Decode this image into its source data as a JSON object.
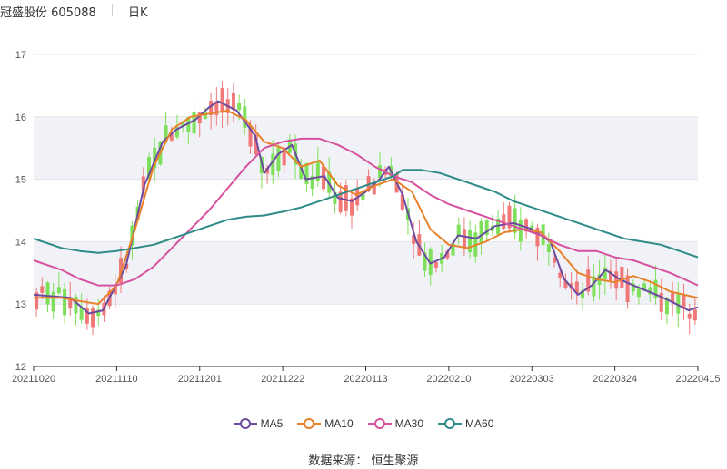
{
  "header": {
    "stock": "冠盛股份 605088",
    "period": "日K"
  },
  "source": "数据来源： 恒生聚源",
  "chart_data": {
    "type": "candlestick",
    "y_ticks": [
      12,
      13,
      14,
      15,
      16,
      17
    ],
    "ylim": [
      12,
      17
    ],
    "x_tick_labels": [
      "20211020",
      "20211110",
      "20211201",
      "20211222",
      "20220113",
      "20220210",
      "20220303",
      "20220324",
      "20220415"
    ],
    "legend": [
      {
        "name": "MA5",
        "color": "#6b4aa0"
      },
      {
        "name": "MA10",
        "color": "#e8822a"
      },
      {
        "name": "MA30",
        "color": "#d6529e"
      },
      {
        "name": "MA60",
        "color": "#2e8b88"
      }
    ],
    "up_color": "#f07878",
    "down_color": "#7ee05a",
    "n_days": 118,
    "candles": [],
    "ma_series": {
      "MA5": [
        [
          0,
          13.15
        ],
        [
          8,
          13.1
        ],
        [
          12,
          12.85
        ],
        [
          15,
          12.9
        ],
        [
          20,
          13.6
        ],
        [
          24,
          14.9
        ],
        [
          28,
          15.6
        ],
        [
          31,
          15.8
        ],
        [
          35,
          15.95
        ],
        [
          38,
          16.15
        ],
        [
          40,
          16.25
        ],
        [
          44,
          16.1
        ],
        [
          48,
          15.7
        ],
        [
          50,
          15.1
        ],
        [
          53,
          15.4
        ],
        [
          56,
          15.55
        ],
        [
          59,
          15.0
        ],
        [
          63,
          15.05
        ],
        [
          66,
          14.7
        ],
        [
          69,
          14.65
        ],
        [
          72,
          14.8
        ],
        [
          75,
          15.0
        ],
        [
          77,
          15.2
        ],
        [
          80,
          14.75
        ],
        [
          83,
          14.0
        ],
        [
          86,
          13.65
        ],
        [
          89,
          13.75
        ],
        [
          92,
          14.1
        ],
        [
          96,
          14.05
        ],
        [
          100,
          14.25
        ],
        [
          104,
          14.3
        ],
        [
          108,
          14.2
        ],
        [
          112,
          14.0
        ],
        [
          115,
          13.4
        ],
        [
          118,
          13.15
        ],
        [
          121,
          13.3
        ],
        [
          124,
          13.55
        ],
        [
          127,
          13.4
        ],
        [
          130,
          13.3
        ],
        [
          135,
          13.15
        ],
        [
          138,
          13.05
        ],
        [
          142,
          12.9
        ],
        [
          144,
          12.95
        ]
      ],
      "MA10": [
        [
          0,
          13.1
        ],
        [
          6,
          13.1
        ],
        [
          10,
          13.05
        ],
        [
          14,
          13.0
        ],
        [
          18,
          13.3
        ],
        [
          22,
          14.2
        ],
        [
          26,
          15.2
        ],
        [
          30,
          15.8
        ],
        [
          34,
          16.0
        ],
        [
          38,
          16.05
        ],
        [
          42,
          16.1
        ],
        [
          46,
          15.95
        ],
        [
          50,
          15.6
        ],
        [
          54,
          15.5
        ],
        [
          58,
          15.2
        ],
        [
          62,
          15.3
        ],
        [
          66,
          14.9
        ],
        [
          70,
          14.75
        ],
        [
          74,
          14.9
        ],
        [
          78,
          15.0
        ],
        [
          82,
          14.8
        ],
        [
          86,
          14.2
        ],
        [
          90,
          13.95
        ],
        [
          94,
          13.9
        ],
        [
          98,
          14.0
        ],
        [
          102,
          14.15
        ],
        [
          106,
          14.2
        ],
        [
          110,
          14.15
        ],
        [
          114,
          13.85
        ],
        [
          118,
          13.5
        ],
        [
          122,
          13.4
        ],
        [
          126,
          13.35
        ],
        [
          130,
          13.45
        ],
        [
          134,
          13.35
        ],
        [
          138,
          13.2
        ],
        [
          144,
          13.1
        ]
      ],
      "MA30": [
        [
          0,
          13.7
        ],
        [
          6,
          13.55
        ],
        [
          10,
          13.4
        ],
        [
          14,
          13.3
        ],
        [
          18,
          13.3
        ],
        [
          22,
          13.4
        ],
        [
          26,
          13.6
        ],
        [
          30,
          13.9
        ],
        [
          34,
          14.2
        ],
        [
          38,
          14.5
        ],
        [
          42,
          14.85
        ],
        [
          46,
          15.2
        ],
        [
          50,
          15.5
        ],
        [
          54,
          15.6
        ],
        [
          58,
          15.65
        ],
        [
          62,
          15.65
        ],
        [
          66,
          15.55
        ],
        [
          70,
          15.4
        ],
        [
          74,
          15.2
        ],
        [
          78,
          15.05
        ],
        [
          82,
          14.95
        ],
        [
          86,
          14.75
        ],
        [
          90,
          14.6
        ],
        [
          94,
          14.5
        ],
        [
          98,
          14.4
        ],
        [
          102,
          14.3
        ],
        [
          106,
          14.2
        ],
        [
          110,
          14.1
        ],
        [
          114,
          13.95
        ],
        [
          118,
          13.85
        ],
        [
          122,
          13.85
        ],
        [
          126,
          13.75
        ],
        [
          130,
          13.7
        ],
        [
          134,
          13.6
        ],
        [
          138,
          13.5
        ],
        [
          144,
          13.3
        ]
      ],
      "MA60": [
        [
          0,
          14.05
        ],
        [
          6,
          13.9
        ],
        [
          10,
          13.85
        ],
        [
          14,
          13.82
        ],
        [
          18,
          13.85
        ],
        [
          22,
          13.9
        ],
        [
          26,
          13.95
        ],
        [
          30,
          14.05
        ],
        [
          34,
          14.15
        ],
        [
          38,
          14.25
        ],
        [
          42,
          14.35
        ],
        [
          46,
          14.4
        ],
        [
          50,
          14.42
        ],
        [
          54,
          14.48
        ],
        [
          58,
          14.55
        ],
        [
          62,
          14.65
        ],
        [
          66,
          14.75
        ],
        [
          70,
          14.85
        ],
        [
          74,
          14.95
        ],
        [
          78,
          15.05
        ],
        [
          80,
          15.15
        ],
        [
          84,
          15.15
        ],
        [
          88,
          15.1
        ],
        [
          92,
          15.0
        ],
        [
          96,
          14.9
        ],
        [
          100,
          14.8
        ],
        [
          104,
          14.65
        ],
        [
          108,
          14.55
        ],
        [
          112,
          14.45
        ],
        [
          116,
          14.35
        ],
        [
          120,
          14.25
        ],
        [
          124,
          14.15
        ],
        [
          128,
          14.05
        ],
        [
          132,
          14.0
        ],
        [
          136,
          13.95
        ],
        [
          140,
          13.85
        ],
        [
          144,
          13.75
        ]
      ]
    }
  }
}
